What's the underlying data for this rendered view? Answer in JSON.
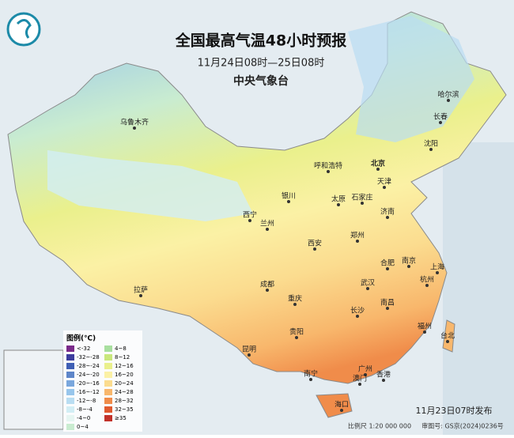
{
  "header": {
    "title": "全国最高气温48小时预报",
    "period": "11月24日08时—25日08时",
    "issuer": "中央气象台"
  },
  "cities": [
    "乌鲁木齐",
    "拉萨",
    "西宁",
    "兰州",
    "银川",
    "呼和浩特",
    "北京",
    "天津",
    "石家庄",
    "太原",
    "济南",
    "郑州",
    "西安",
    "成都",
    "重庆",
    "贵阳",
    "昆明",
    "南宁",
    "广州",
    "澳门",
    "香港",
    "海口",
    "长沙",
    "南昌",
    "武汉",
    "合肥",
    "南京",
    "上海",
    "杭州",
    "福州",
    "台北",
    "哈尔滨",
    "长春",
    "沈阳"
  ],
  "legend": {
    "title": "图例(℃)",
    "items": [
      {
        "label": "<-32",
        "color": "#7a2a8a"
      },
      {
        "label": "-32~-28",
        "color": "#3d3d9e"
      },
      {
        "label": "-28~-24",
        "color": "#3f5fb5"
      },
      {
        "label": "-24~-20",
        "color": "#5e86c9"
      },
      {
        "label": "-20~-16",
        "color": "#7aa7dd"
      },
      {
        "label": "-16~-12",
        "color": "#98c6ec"
      },
      {
        "label": "-12~-8",
        "color": "#b9ddf2"
      },
      {
        "label": "-8~-4",
        "color": "#d2eef5"
      },
      {
        "label": "-4~0",
        "color": "#e6f6f2"
      },
      {
        "label": "0~4",
        "color": "#c9ecd0"
      },
      {
        "label": "4~8",
        "color": "#a8df9f"
      },
      {
        "label": "8~12",
        "color": "#c9e87c"
      },
      {
        "label": "12~16",
        "color": "#eaf08c"
      },
      {
        "label": "16~20",
        "color": "#fbf1a5"
      },
      {
        "label": "20~24",
        "color": "#fbdc8f"
      },
      {
        "label": "24~28",
        "color": "#f8b76c"
      },
      {
        "label": "28~32",
        "color": "#f08c4a"
      },
      {
        "label": "32~35",
        "color": "#e05a2f"
      },
      {
        "label": "≥35",
        "color": "#c2322a"
      }
    ]
  },
  "footer": {
    "issued": "11月23日07时发布",
    "scale": "比例尺 1:20 000 000",
    "approval": "审图号: GS京(2024)0236号"
  }
}
